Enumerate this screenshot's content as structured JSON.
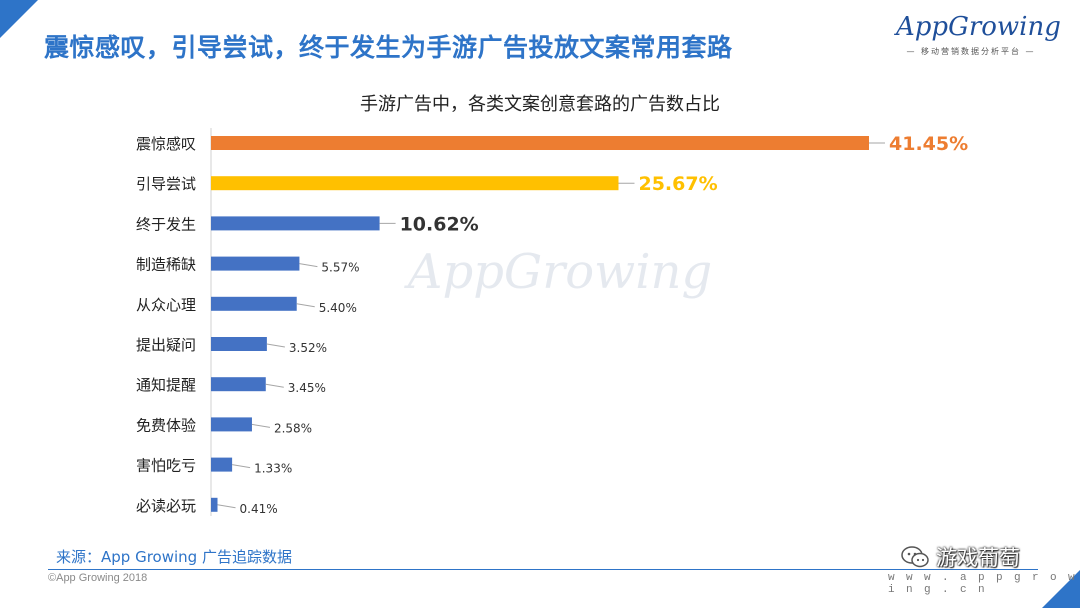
{
  "slide": {
    "title": "震惊感叹，引导尝试，终于发生为手游广告投放文案常用套路",
    "source": "来源：App Growing 广告追踪数据",
    "copyright": "©App Growing 2018",
    "website": "w w w . a p p g r o w i n g . c n",
    "wechat_name": "游戏葡萄"
  },
  "logo": {
    "name": "AppGrowing",
    "tagline": "— 移动营销数据分析平台 —"
  },
  "watermark": "AppGrowing",
  "colors": {
    "accent_blue": "#4472C4",
    "orange": "#ED7D31",
    "yellow": "#FFC000",
    "title_blue": "#2E74C8"
  },
  "chart_data": {
    "type": "bar",
    "orientation": "horizontal",
    "title": "手游广告中，各类文案创意套路的广告数占比",
    "xlabel": "",
    "ylabel": "",
    "xlim": [
      0,
      45
    ],
    "grid": false,
    "legend": "none",
    "categories": [
      "震惊感叹",
      "引导尝试",
      "终于发生",
      "制造稀缺",
      "从众心理",
      "提出疑问",
      "通知提醒",
      "免费体验",
      "害怕吃亏",
      "必读必玩"
    ],
    "values": [
      41.45,
      25.67,
      10.62,
      5.57,
      5.4,
      3.52,
      3.45,
      2.58,
      1.33,
      0.41
    ],
    "labels": [
      "41.45%",
      "25.67%",
      "10.62%",
      "5.57%",
      "5.40%",
      "3.52%",
      "3.45%",
      "2.58%",
      "1.33%",
      "0.41%"
    ],
    "bar_colors": [
      "#ED7D31",
      "#FFC000",
      "#4472C4",
      "#4472C4",
      "#4472C4",
      "#4472C4",
      "#4472C4",
      "#4472C4",
      "#4472C4",
      "#4472C4"
    ]
  }
}
